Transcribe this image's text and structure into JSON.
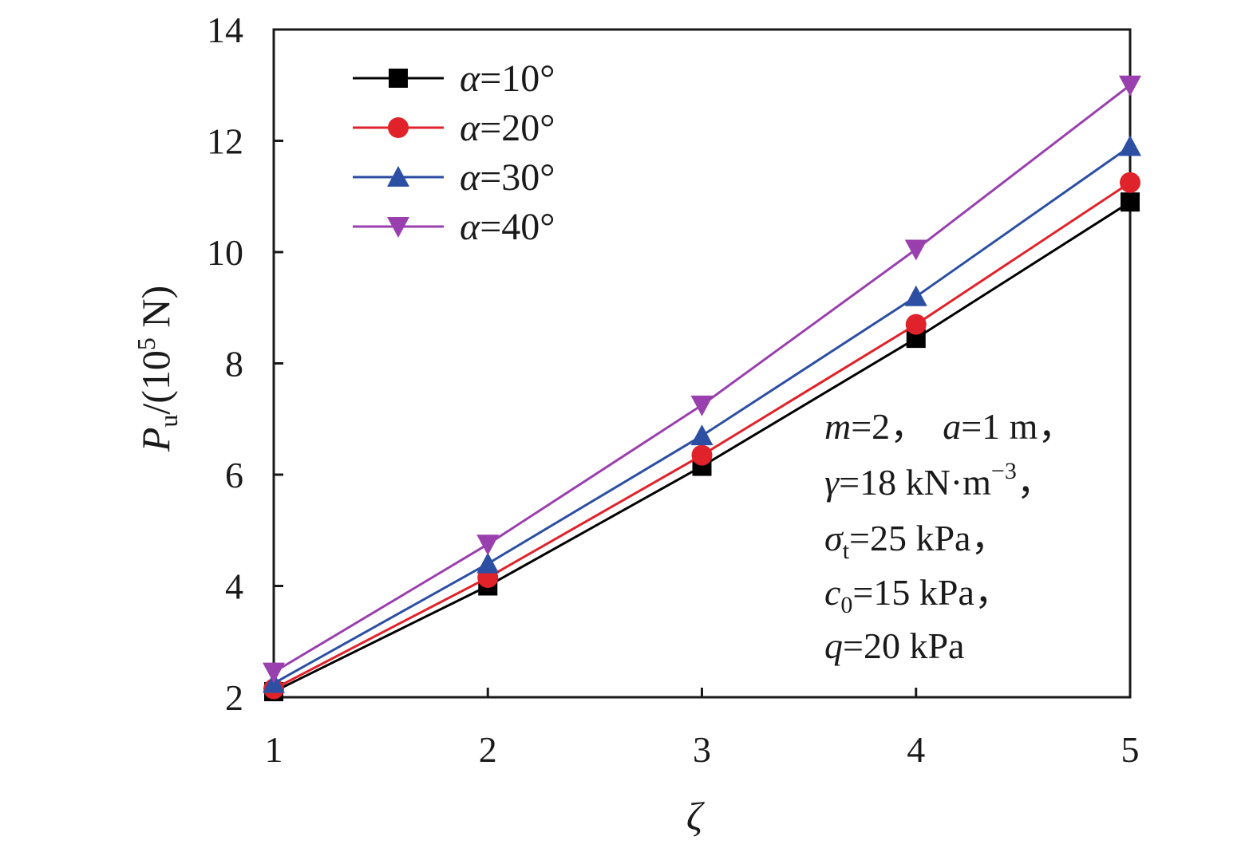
{
  "chart_data": {
    "type": "line",
    "title": "",
    "xlabel": "ζ",
    "ylabel": {
      "main": "P",
      "sub": "u",
      "rest1": "/(10",
      "sup": "5",
      "rest2": " N)"
    },
    "x": [
      1,
      2,
      3,
      4,
      5
    ],
    "xlim": [
      1,
      5
    ],
    "ylim": [
      2,
      14
    ],
    "xticks": [
      1,
      2,
      3,
      4,
      5
    ],
    "yticks": [
      2,
      4,
      6,
      8,
      10,
      12,
      14
    ],
    "grid": false,
    "legend_position": "top-left",
    "series": [
      {
        "name": "α=10°",
        "symbol": "α",
        "value_label": "=10°",
        "color": "#000000",
        "marker": "square",
        "values": [
          2.1,
          4.0,
          6.15,
          8.45,
          10.9
        ]
      },
      {
        "name": "α=20°",
        "symbol": "α",
        "value_label": "=20°",
        "color": "#e0222a",
        "marker": "circle",
        "values": [
          2.15,
          4.15,
          6.35,
          8.7,
          11.25
        ]
      },
      {
        "name": "α=30°",
        "symbol": "α",
        "value_label": "=30°",
        "color": "#2c4fa3",
        "marker": "triangle-up",
        "values": [
          2.25,
          4.4,
          6.7,
          9.2,
          11.9
        ]
      },
      {
        "name": "α=40°",
        "symbol": "α",
        "value_label": "=40°",
        "color": "#9a3fae",
        "marker": "triangle-down",
        "values": [
          2.45,
          4.75,
          7.25,
          10.05,
          13.0
        ]
      }
    ],
    "annotations": {
      "line1": {
        "v1": "m",
        "t1": "=2，",
        "v2": "a",
        "t2": "=1 m，"
      },
      "line2": {
        "v1": "γ",
        "t1": "=18 kN·m",
        "sup": "−3",
        "t2": "，"
      },
      "line3": {
        "v1": "σ",
        "sub": "t",
        "t1": "=25 kPa，"
      },
      "line4": {
        "v1": "c",
        "sub": "0",
        "t1": "=15 kPa，"
      },
      "line5": {
        "v1": "q",
        "t1": "=20 kPa"
      }
    }
  }
}
